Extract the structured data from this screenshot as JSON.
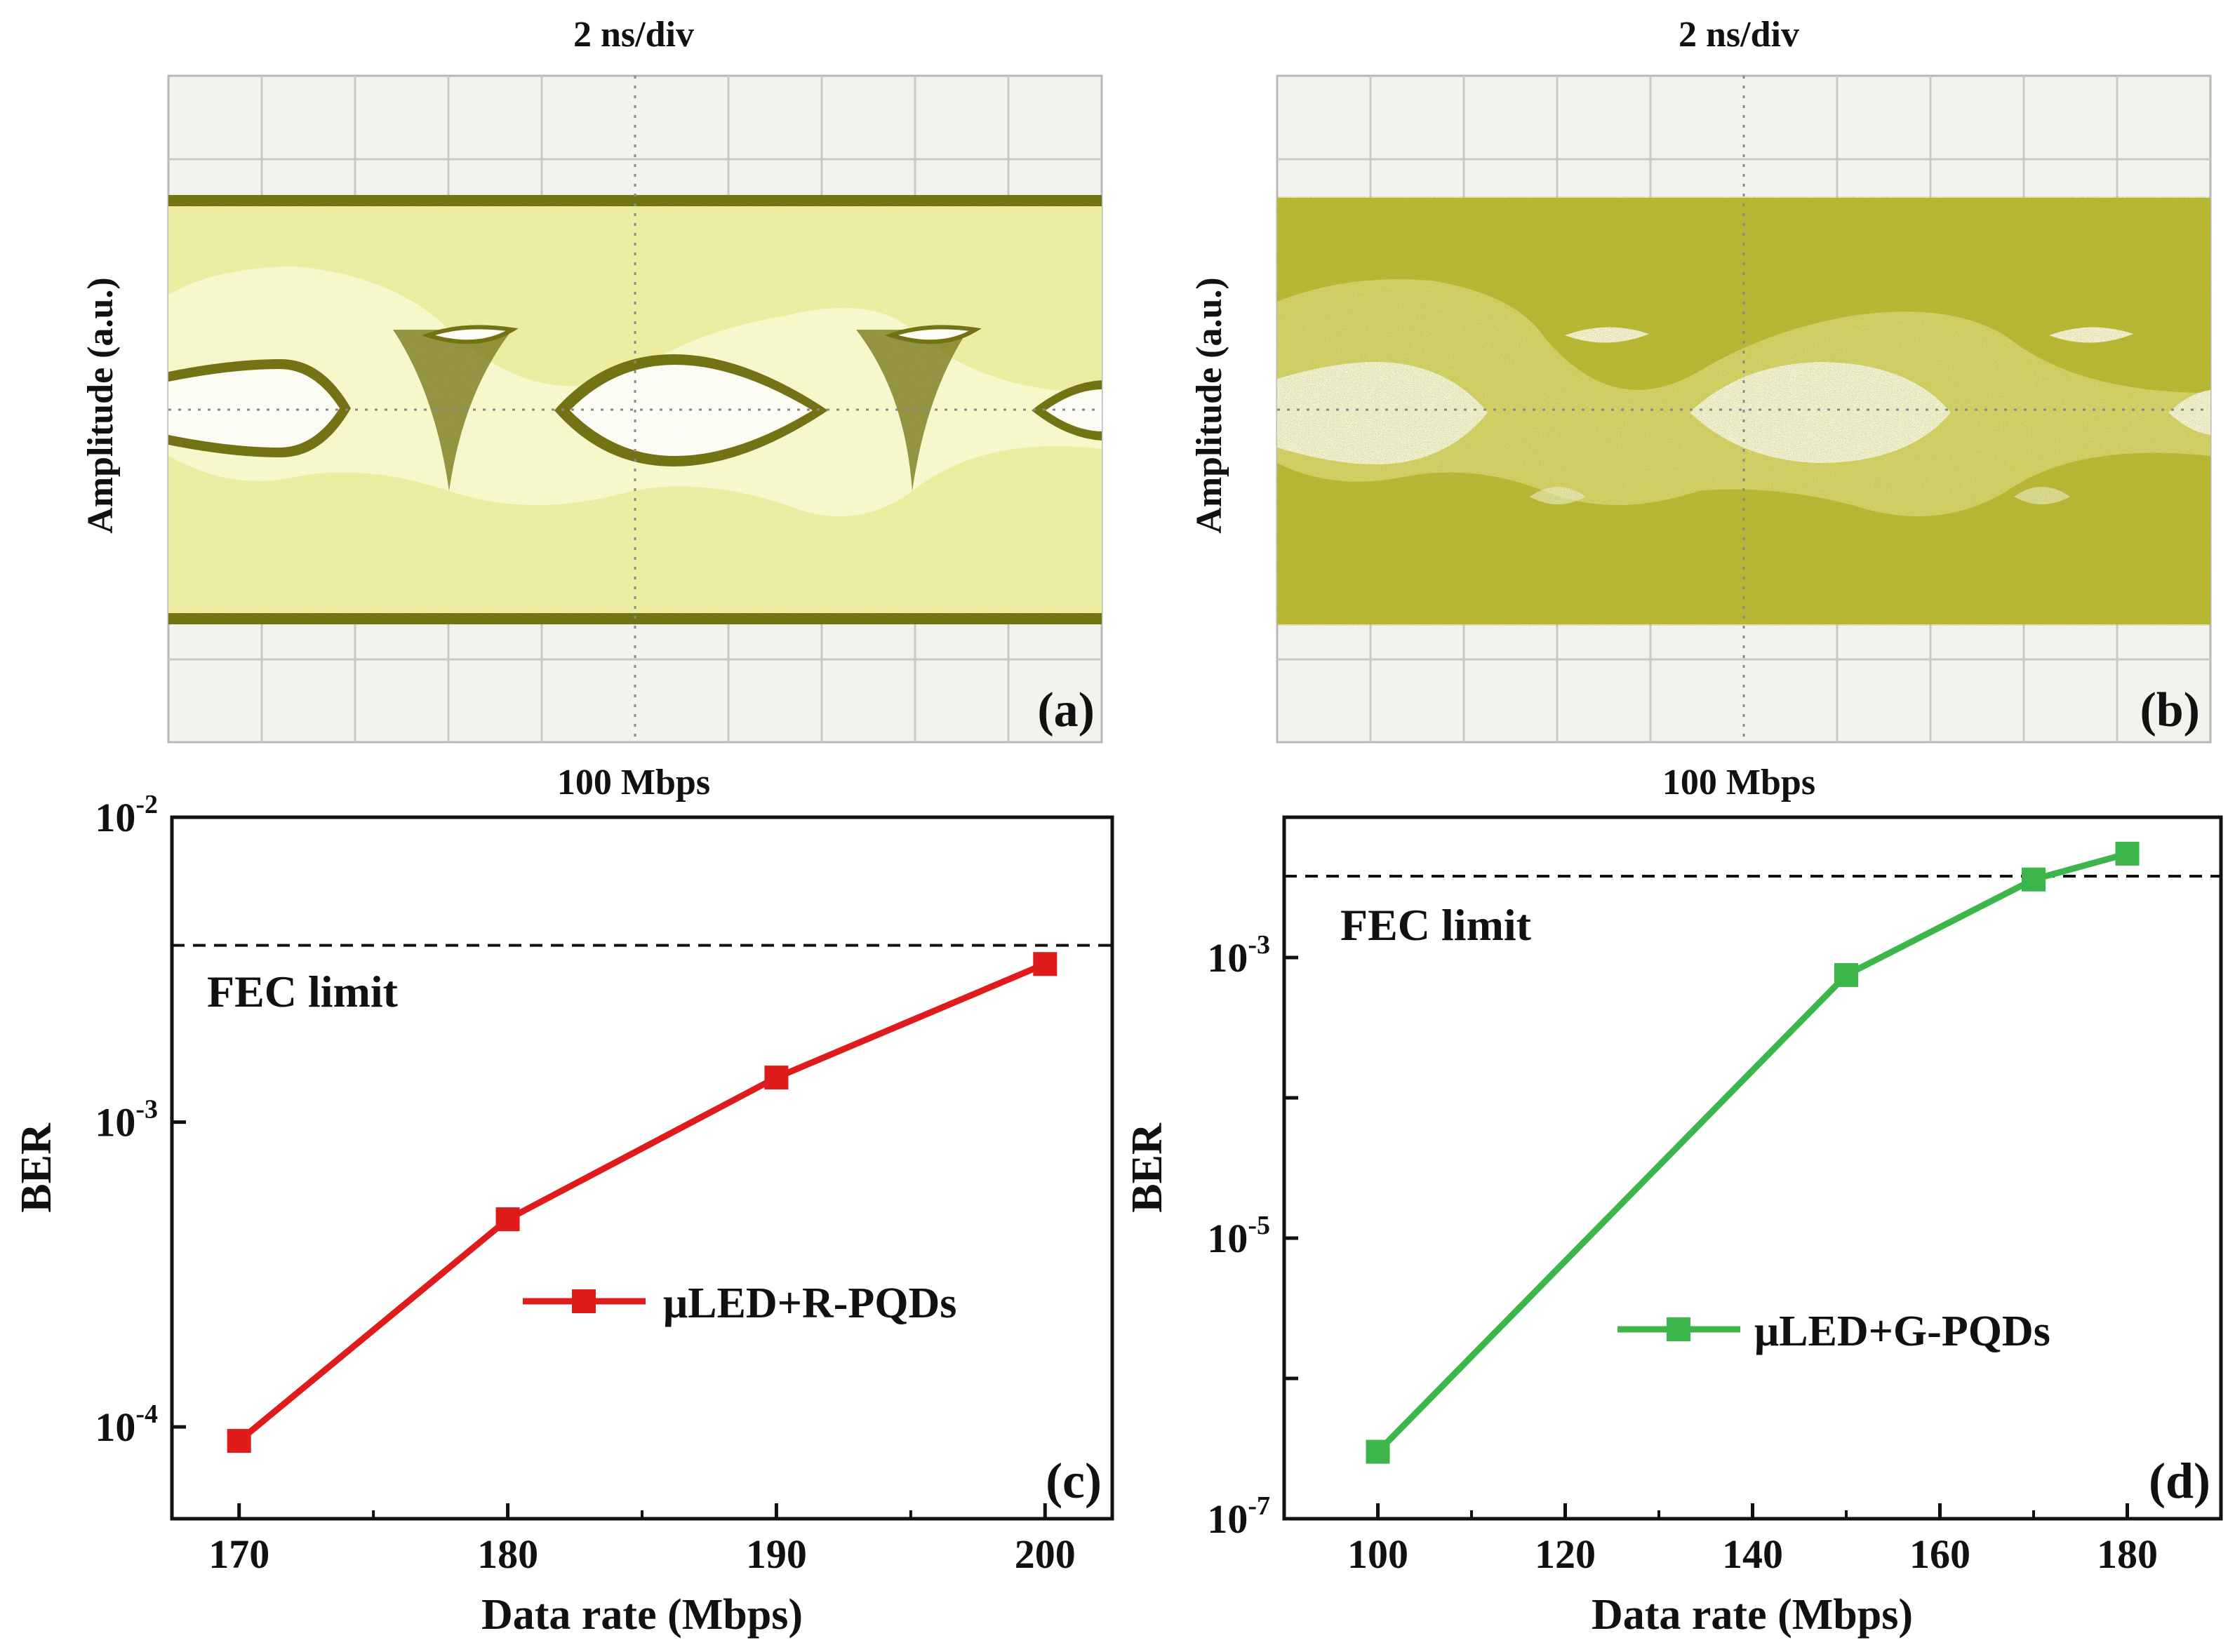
{
  "chart_data": [
    {
      "type": "eye-diagram",
      "panel_label": "(a)",
      "title": "2 ns/div",
      "xlabel": "100 Mbps",
      "ylabel": "Amplitude  (a.u.)",
      "color": "#d4d45a"
    },
    {
      "type": "eye-diagram",
      "panel_label": "(b)",
      "title": "2 ns/div",
      "xlabel": "100 Mbps",
      "ylabel": "Amplitude  (a.u.)",
      "color": "#b3b336"
    },
    {
      "type": "line",
      "panel_label": "(c)",
      "xlabel": "Data rate (Mbps)",
      "ylabel": "BER",
      "yscale": "log",
      "xlim": [
        167.5,
        202.5
      ],
      "ylim": [
        5e-05,
        0.01
      ],
      "xticks": [
        "170",
        "180",
        "190",
        "200"
      ],
      "ytick_labels": [
        {
          "mantissa": "10",
          "exponent": "-2",
          "value": 0.01
        },
        {
          "mantissa": "10",
          "exponent": "-3",
          "value": 0.001
        },
        {
          "mantissa": "10",
          "exponent": "-4",
          "value": 0.0001
        }
      ],
      "fec_limit": 0.0038,
      "fec_label": "FEC limit",
      "series": [
        {
          "name": "μLED+R-PQDs",
          "color": "#e01b1b",
          "x": [
            170,
            180,
            190,
            200
          ],
          "y": [
            9e-05,
            0.00048,
            0.0014,
            0.0033
          ]
        }
      ]
    },
    {
      "type": "line",
      "panel_label": "(d)",
      "xlabel": "Data rate (Mbps)",
      "ylabel": "BER",
      "yscale": "log",
      "xlim": [
        90,
        190
      ],
      "ylim": [
        1e-07,
        0.01
      ],
      "xticks": [
        "100",
        "120",
        "140",
        "160",
        "180"
      ],
      "ytick_labels": [
        {
          "mantissa": "10",
          "exponent": "-3",
          "value": 0.001
        },
        {
          "mantissa": "10",
          "exponent": "-5",
          "value": 1e-05
        },
        {
          "mantissa": "10",
          "exponent": "-7",
          "value": 1e-07
        }
      ],
      "fec_limit": 0.0038,
      "fec_label": "FEC limit",
      "series": [
        {
          "name": "μLED+G-PQDs",
          "color": "#3cb54a",
          "x": [
            100,
            150,
            170,
            180
          ],
          "y": [
            3e-07,
            0.00075,
            0.0036,
            0.0055
          ]
        }
      ]
    }
  ]
}
